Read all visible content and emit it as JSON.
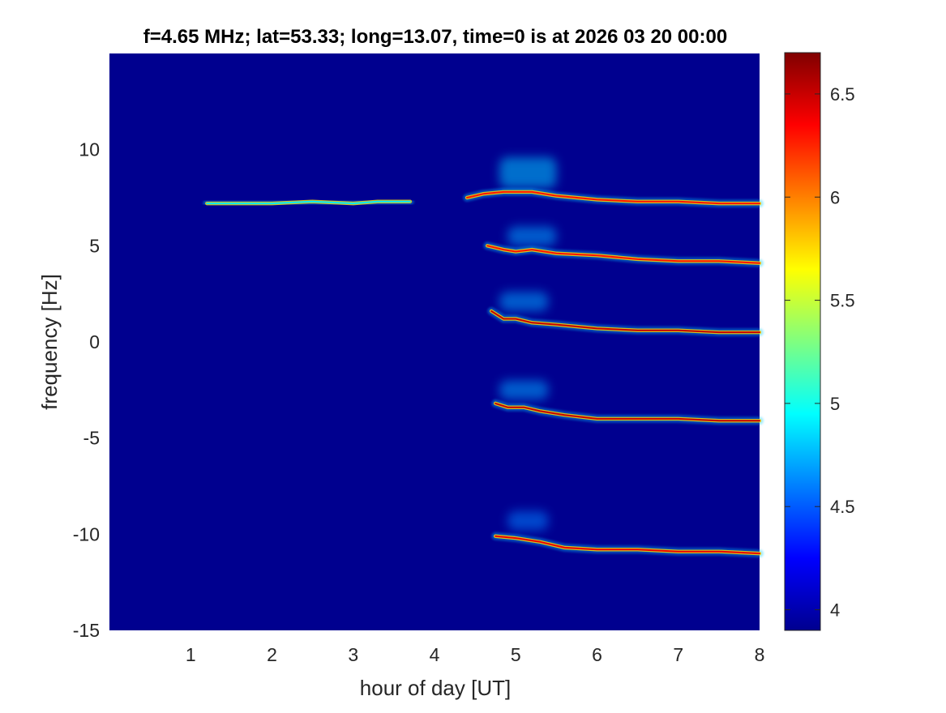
{
  "chart_data": {
    "type": "heatmap",
    "title": "f=4.65 MHz;  lat=53.33; long=13.07, time=0 is at 2026 03 20 00:00",
    "xlabel": "hour of day [UT]",
    "ylabel": "frequency [Hz]",
    "xlim": [
      0,
      8
    ],
    "ylim": [
      -15,
      15
    ],
    "x_ticks": [
      1,
      2,
      3,
      4,
      5,
      6,
      7,
      8
    ],
    "x_tick_labels": [
      "1",
      "2",
      "3",
      "4",
      "5",
      "6",
      "7",
      "8"
    ],
    "y_ticks": [
      -15,
      -10,
      -5,
      0,
      5,
      10
    ],
    "y_tick_labels": [
      "-15",
      "-10",
      "-5",
      "0",
      "5",
      "10"
    ],
    "colorbar": {
      "colormap": "jet",
      "range": [
        3.9,
        6.7
      ],
      "ticks": [
        4,
        4.5,
        5,
        5.5,
        6,
        6.5
      ],
      "tick_labels": [
        "4",
        "4.5",
        "5",
        "5.5",
        "6",
        "6.5"
      ]
    },
    "background_color": "#00008F",
    "traces": [
      {
        "points": [
          [
            1.2,
            7.2
          ],
          [
            1.6,
            7.2
          ],
          [
            2.0,
            7.2
          ],
          [
            2.5,
            7.3
          ],
          [
            3.0,
            7.2
          ],
          [
            3.3,
            7.3
          ],
          [
            3.7,
            7.3
          ]
        ],
        "intensity": 4.9
      },
      {
        "points": [
          [
            4.4,
            7.5
          ],
          [
            4.6,
            7.7
          ],
          [
            4.85,
            7.8
          ],
          [
            5.0,
            7.8
          ],
          [
            5.2,
            7.8
          ],
          [
            5.5,
            7.6
          ],
          [
            6.0,
            7.4
          ],
          [
            6.5,
            7.3
          ],
          [
            7.0,
            7.3
          ],
          [
            7.5,
            7.2
          ],
          [
            8.0,
            7.2
          ]
        ],
        "intensity": 6.3
      },
      {
        "points": [
          [
            4.65,
            5.0
          ],
          [
            4.85,
            4.8
          ],
          [
            5.0,
            4.7
          ],
          [
            5.2,
            4.8
          ],
          [
            5.5,
            4.6
          ],
          [
            6.0,
            4.5
          ],
          [
            6.5,
            4.3
          ],
          [
            7.0,
            4.2
          ],
          [
            7.5,
            4.2
          ],
          [
            8.0,
            4.1
          ]
        ],
        "intensity": 6.3
      },
      {
        "points": [
          [
            4.7,
            1.6
          ],
          [
            4.85,
            1.2
          ],
          [
            5.0,
            1.2
          ],
          [
            5.2,
            1.0
          ],
          [
            5.5,
            0.9
          ],
          [
            6.0,
            0.7
          ],
          [
            6.5,
            0.6
          ],
          [
            7.0,
            0.6
          ],
          [
            7.5,
            0.5
          ],
          [
            8.0,
            0.5
          ]
        ],
        "intensity": 6.5
      },
      {
        "points": [
          [
            4.75,
            -3.2
          ],
          [
            4.9,
            -3.4
          ],
          [
            5.1,
            -3.4
          ],
          [
            5.3,
            -3.6
          ],
          [
            5.6,
            -3.8
          ],
          [
            6.0,
            -4.0
          ],
          [
            6.5,
            -4.0
          ],
          [
            7.0,
            -4.0
          ],
          [
            7.5,
            -4.1
          ],
          [
            8.0,
            -4.1
          ]
        ],
        "intensity": 6.5
      },
      {
        "points": [
          [
            4.75,
            -10.1
          ],
          [
            5.0,
            -10.2
          ],
          [
            5.3,
            -10.4
          ],
          [
            5.6,
            -10.7
          ],
          [
            6.0,
            -10.8
          ],
          [
            6.5,
            -10.8
          ],
          [
            7.0,
            -10.9
          ],
          [
            7.5,
            -10.9
          ],
          [
            8.0,
            -11.0
          ]
        ],
        "intensity": 6.4
      }
    ],
    "bursts": [
      {
        "x": [
          4.8,
          5.5
        ],
        "y": [
          8.0,
          9.6
        ],
        "intensity": 4.8
      },
      {
        "x": [
          4.9,
          5.5
        ],
        "y": [
          5.0,
          6.0
        ],
        "intensity": 4.7
      },
      {
        "x": [
          4.8,
          5.4
        ],
        "y": [
          1.6,
          2.6
        ],
        "intensity": 4.7
      },
      {
        "x": [
          4.8,
          5.4
        ],
        "y": [
          -3.0,
          -2.0
        ],
        "intensity": 4.7
      },
      {
        "x": [
          4.9,
          5.4
        ],
        "y": [
          -9.8,
          -8.8
        ],
        "intensity": 4.6
      }
    ]
  }
}
